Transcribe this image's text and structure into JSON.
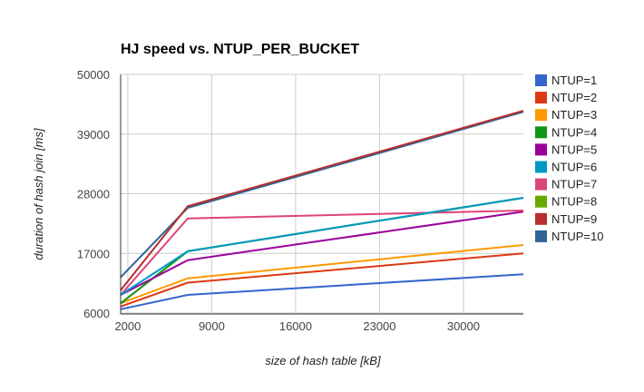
{
  "chart_data": {
    "type": "line",
    "title": "HJ speed vs. NTUP_PER_BUCKET",
    "xlabel": "size of hash table [kB]",
    "ylabel": "duration of hash join [ms]",
    "xlim": [
      1400,
      35000
    ],
    "ylim": [
      6000,
      50000
    ],
    "xticks": [
      2000,
      9000,
      16000,
      23000,
      30000
    ],
    "yticks": [
      6000,
      17000,
      28000,
      39000,
      50000
    ],
    "grid": true,
    "legend": "right",
    "x": [
      1400,
      7000,
      35000
    ],
    "series": [
      {
        "name": "NTUP=1",
        "color": "#3366cc",
        "values": [
          6700,
          9350,
          13150
        ]
      },
      {
        "name": "NTUP=2",
        "color": "#dc3912",
        "values": [
          7200,
          11600,
          17000
        ]
      },
      {
        "name": "NTUP=3",
        "color": "#ff9900",
        "values": [
          7800,
          12400,
          18550
        ]
      },
      {
        "name": "NTUP=4",
        "color": "#109618",
        "values": [
          7800,
          17400,
          27250
        ]
      },
      {
        "name": "NTUP=5",
        "color": "#990099",
        "values": [
          9350,
          15750,
          24700
        ]
      },
      {
        "name": "NTUP=6",
        "color": "#0099c6",
        "values": [
          9350,
          17400,
          27250
        ]
      },
      {
        "name": "NTUP=7",
        "color": "#dd4477",
        "values": [
          9350,
          23450,
          24900
        ]
      },
      {
        "name": "NTUP=8",
        "color": "#66aa00",
        "values": [
          7800,
          17400,
          27250
        ]
      },
      {
        "name": "NTUP=9",
        "color": "#b82e2e",
        "values": [
          10200,
          25700,
          43300
        ]
      },
      {
        "name": "NTUP=10",
        "color": "#316395",
        "values": [
          12600,
          25400,
          43100
        ]
      }
    ]
  }
}
